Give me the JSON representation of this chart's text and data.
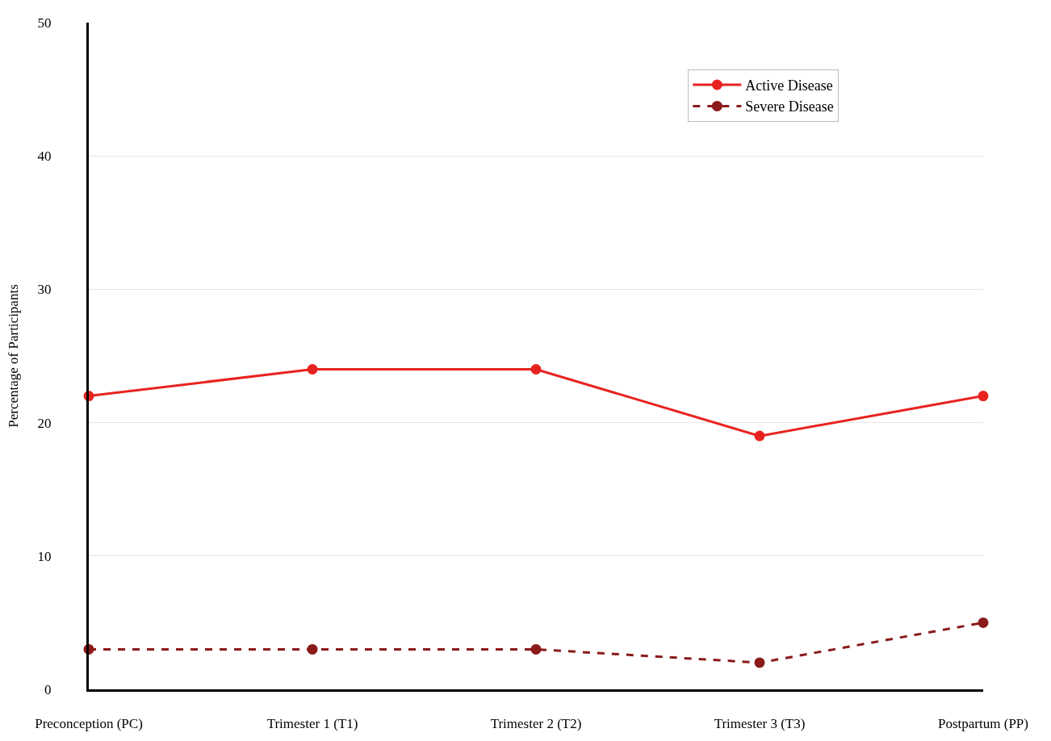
{
  "chart_data": {
    "type": "line",
    "ylabel": "Percentage of Participants",
    "categories": [
      "Preconception (PC)",
      "Trimester 1 (T1)",
      "Trimester 2 (T2)",
      "Trimester 3 (T3)",
      "Postpartum (PP)"
    ],
    "series": [
      {
        "name": "Active Disease",
        "color": "#e8231f",
        "values": [
          22,
          24,
          24,
          19,
          22
        ],
        "line_style": "solid"
      },
      {
        "name": "Severe Disease",
        "color": "#8b1a1a",
        "values": [
          3,
          3,
          3,
          2,
          5
        ],
        "line_style": "dashed"
      }
    ],
    "ylim": [
      0,
      50
    ],
    "yticks": [
      0,
      10,
      20,
      30,
      40,
      50
    ],
    "grid": "y",
    "legend": "top right",
    "marker": "circle"
  }
}
